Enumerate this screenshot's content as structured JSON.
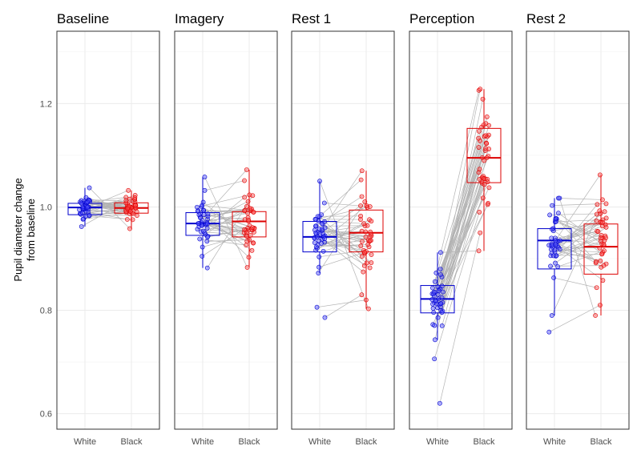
{
  "chart_data": {
    "type": "box-paired-points",
    "title": "",
    "ylabel": [
      "Pupil diameter change",
      "from baseline"
    ],
    "xlabel": "",
    "ylim": [
      0.57,
      1.34
    ],
    "y_ticks": [
      0.6,
      0.8,
      1.0,
      1.2
    ],
    "y_tick_labels": [
      "0.6",
      "0.8",
      "1.0",
      "1.2"
    ],
    "categories": [
      "White",
      "Black"
    ],
    "grid": true,
    "colors": {
      "White": "#0000cc",
      "Black": "#dd0000",
      "pair_line": "#b3b3b3"
    },
    "facets": [
      {
        "name": "Baseline",
        "boxes": {
          "White": {
            "lower_whisker": 0.962,
            "q1": 0.985,
            "median": 0.999,
            "q3": 1.007,
            "upper_whisker": 1.037
          },
          "Black": {
            "lower_whisker": 0.958,
            "q1": 0.988,
            "median": 0.998,
            "q3": 1.008,
            "upper_whisker": 1.032
          }
        },
        "center": [
          0.999,
          0.998
        ],
        "spread": [
          0.016,
          0.015
        ],
        "corr": 0.2,
        "range_white": [
          0.962,
          1.037
        ],
        "range_black": [
          0.958,
          1.032
        ],
        "extra_points": []
      },
      {
        "name": "Imagery",
        "boxes": {
          "White": {
            "lower_whisker": 0.882,
            "q1": 0.945,
            "median": 0.968,
            "q3": 0.989,
            "upper_whisker": 1.058
          },
          "Black": {
            "lower_whisker": 0.883,
            "q1": 0.942,
            "median": 0.972,
            "q3": 0.991,
            "upper_whisker": 1.072
          }
        },
        "center": [
          0.966,
          0.969
        ],
        "spread": [
          0.04,
          0.042
        ],
        "corr": 0.35,
        "range_white": [
          0.882,
          1.058
        ],
        "range_black": [
          0.883,
          1.072
        ],
        "extra_points": []
      },
      {
        "name": "Rest 1",
        "boxes": {
          "White": {
            "lower_whisker": 0.872,
            "q1": 0.913,
            "median": 0.942,
            "q3": 0.972,
            "upper_whisker": 1.05
          },
          "Black": {
            "lower_whisker": 0.803,
            "q1": 0.913,
            "median": 0.95,
            "q3": 0.994,
            "upper_whisker": 1.07
          }
        },
        "center": [
          0.945,
          0.952
        ],
        "spread": [
          0.042,
          0.052
        ],
        "corr": 0.4,
        "range_white": [
          0.872,
          1.05
        ],
        "range_black": [
          0.803,
          1.07
        ],
        "extra_points": [
          {
            "white": 0.786,
            "black": 0.83
          },
          {
            "white": 0.806,
            "black": 0.82
          }
        ]
      },
      {
        "name": "Perception",
        "boxes": {
          "White": {
            "lower_whisker": 0.743,
            "q1": 0.795,
            "median": 0.822,
            "q3": 0.848,
            "upper_whisker": 0.912
          },
          "Black": {
            "lower_whisker": 0.915,
            "q1": 1.047,
            "median": 1.095,
            "q3": 1.152,
            "upper_whisker": 1.228
          }
        },
        "center": [
          0.823,
          1.097
        ],
        "spread": [
          0.04,
          0.072
        ],
        "corr": 0.3,
        "range_white": [
          0.743,
          0.912
        ],
        "range_black": [
          0.915,
          1.228
        ],
        "extra_points": [
          {
            "white": 0.62,
            "black": 0.95
          },
          {
            "white": 0.706,
            "black": 0.99
          }
        ]
      },
      {
        "name": "Rest 2",
        "boxes": {
          "White": {
            "lower_whisker": 0.79,
            "q1": 0.88,
            "median": 0.935,
            "q3": 0.958,
            "upper_whisker": 1.017
          },
          "Black": {
            "lower_whisker": 0.79,
            "q1": 0.87,
            "median": 0.923,
            "q3": 0.967,
            "upper_whisker": 1.062
          }
        },
        "center": [
          0.925,
          0.922
        ],
        "spread": [
          0.05,
          0.062
        ],
        "corr": 0.3,
        "range_white": [
          0.79,
          1.017
        ],
        "range_black": [
          0.79,
          1.062
        ],
        "extra_points": [
          {
            "white": 0.758,
            "black": 0.81
          }
        ]
      }
    ]
  }
}
